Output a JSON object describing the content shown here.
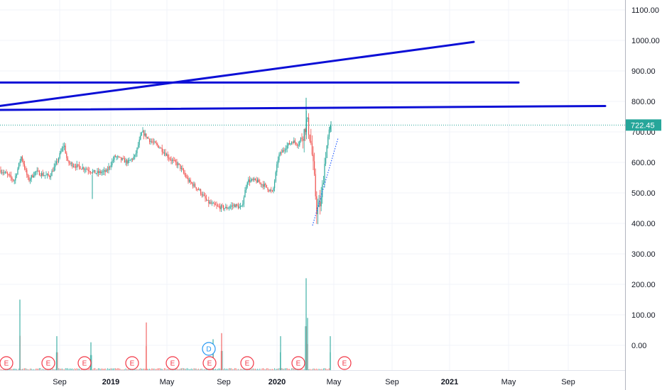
{
  "chart_data": {
    "type": "candlestick",
    "y_axis": {
      "range": [
        -100,
        1250
      ],
      "ticks": [
        "1100.00",
        "1000.00",
        "900.00",
        "800.00",
        "700.00",
        "600.00",
        "500.00",
        "400.00",
        "300.00",
        "200.00",
        "100.00",
        "0.00"
      ],
      "tick_values": [
        1100,
        1000,
        900,
        800,
        700,
        600,
        500,
        400,
        300,
        200,
        100,
        0
      ]
    },
    "x_axis": {
      "ticks": [
        {
          "label": "Sep",
          "year": false
        },
        {
          "label": "2019",
          "year": true
        },
        {
          "label": "May",
          "year": false
        },
        {
          "label": "Sep",
          "year": false
        },
        {
          "label": "2020",
          "year": true
        },
        {
          "label": "May",
          "year": false
        },
        {
          "label": "Sep",
          "year": false
        },
        {
          "label": "2021",
          "year": true
        },
        {
          "label": "May",
          "year": false
        },
        {
          "label": "Sep",
          "year": false
        }
      ]
    },
    "last_price": {
      "label": "722.45",
      "value": 722.45,
      "color": "#26a69a"
    },
    "price_path": [
      [
        0,
        575
      ],
      [
        10,
        560
      ],
      [
        20,
        540
      ],
      [
        30,
        620
      ],
      [
        40,
        540
      ],
      [
        50,
        570
      ],
      [
        60,
        560
      ],
      [
        70,
        555
      ],
      [
        80,
        600
      ],
      [
        90,
        660
      ],
      [
        95,
        600
      ],
      [
        105,
        590
      ],
      [
        120,
        580
      ],
      [
        135,
        565
      ],
      [
        150,
        570
      ],
      [
        162,
        620
      ],
      [
        170,
        610
      ],
      [
        180,
        600
      ],
      [
        190,
        620
      ],
      [
        200,
        700
      ],
      [
        212,
        670
      ],
      [
        225,
        650
      ],
      [
        240,
        610
      ],
      [
        252,
        590
      ],
      [
        265,
        540
      ],
      [
        280,
        510
      ],
      [
        292,
        470
      ],
      [
        305,
        455
      ],
      [
        318,
        450
      ],
      [
        330,
        460
      ],
      [
        340,
        450
      ],
      [
        348,
        540
      ],
      [
        360,
        540
      ],
      [
        372,
        525
      ],
      [
        384,
        500
      ],
      [
        392,
        620
      ],
      [
        402,
        650
      ],
      [
        412,
        670
      ],
      [
        420,
        660
      ],
      [
        428,
        700
      ],
      [
        432,
        740
      ],
      [
        438,
        660
      ],
      [
        442,
        560
      ],
      [
        446,
        440
      ],
      [
        452,
        470
      ],
      [
        458,
        620
      ],
      [
        463,
        700
      ],
      [
        466,
        722
      ]
    ],
    "volume_peaks": [
      [
        28,
        150
      ],
      [
        80,
        30
      ],
      [
        128,
        10
      ],
      [
        206,
        75
      ],
      [
        300,
        20
      ],
      [
        312,
        40
      ],
      [
        395,
        30
      ],
      [
        431,
        220
      ],
      [
        433,
        90
      ],
      [
        465,
        30
      ]
    ],
    "trend_lines": [
      {
        "from": [
          0,
          785
        ],
        "to": [
          667,
          995
        ],
        "color": "#0c0fd6"
      },
      {
        "from": [
          0,
          862
        ],
        "to": [
          730,
          862
        ],
        "color": "#0c0fd6"
      },
      {
        "from": [
          0,
          772
        ],
        "to": [
          852,
          785
        ],
        "color": "#0c0fd6"
      }
    ],
    "dotted_line": {
      "from": [
        440,
        393
      ],
      "to": [
        476,
        680
      ],
      "color": "#2962ff"
    },
    "events": [
      {
        "x": 9,
        "label": "E"
      },
      {
        "x": 68,
        "label": "E"
      },
      {
        "x": 119,
        "label": "E"
      },
      {
        "x": 186,
        "label": "E"
      },
      {
        "x": 243,
        "label": "E"
      },
      {
        "x": 295,
        "label": "E"
      },
      {
        "x": 348,
        "label": "E"
      },
      {
        "x": 420,
        "label": "E"
      },
      {
        "x": 485,
        "label": "E"
      },
      {
        "x": 294,
        "label": "D",
        "dividend": true
      }
    ],
    "colors": {
      "up": "#26a69a",
      "down": "#ef5350",
      "grid": "#f0f3fa",
      "axis_text": "#131722"
    },
    "grid": true
  }
}
